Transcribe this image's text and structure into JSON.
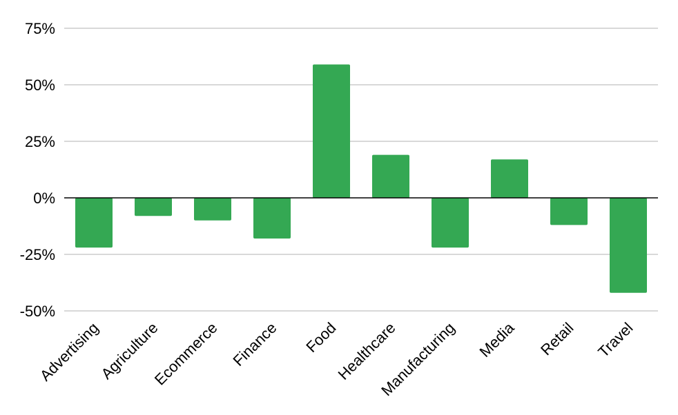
{
  "chart_data": {
    "type": "bar",
    "title": "",
    "xlabel": "",
    "ylabel": "",
    "categories": [
      "Advertising",
      "Agriculture",
      "Ecommerce",
      "Finance",
      "Food",
      "Healthcare",
      "Manufacturing",
      "Media",
      "Retail",
      "Travel"
    ],
    "values": [
      -22,
      -8,
      -10,
      -18,
      59,
      19,
      -22,
      17,
      -12,
      -42
    ],
    "ylim": [
      -50,
      75
    ],
    "yticks": [
      75,
      50,
      25,
      0,
      -25,
      -50
    ],
    "ytick_labels": [
      "75%",
      "50%",
      "25%",
      "0%",
      "-25%",
      "-50%"
    ],
    "grid": true,
    "bar_color": "#34a853",
    "grid_color": "#cccccc",
    "zero_line_color": "#000000"
  }
}
